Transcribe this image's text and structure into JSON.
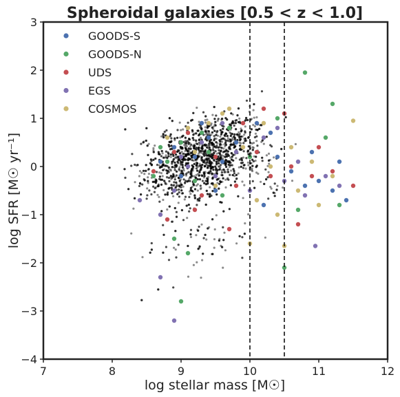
{
  "chart_data": {
    "type": "scatter",
    "title": "Spheroidal galaxies [0.5 < z < 1.0]",
    "xlabel": "log stellar mass [M☉]",
    "ylabel": "log SFR [M☉ yr⁻¹]",
    "xlim": [
      7,
      12
    ],
    "ylim": [
      -4,
      3
    ],
    "xticks": [
      "7",
      "8",
      "9",
      "10",
      "11",
      "12"
    ],
    "yticks": [
      "3",
      "2",
      "1",
      "0",
      "−1",
      "−2",
      "−3",
      "−4"
    ],
    "xtick_values": [
      7,
      8,
      9,
      10,
      11,
      12
    ],
    "ytick_values": [
      3,
      2,
      1,
      0,
      -1,
      -2,
      -3,
      -4
    ],
    "grid": false,
    "legend_position": "top-left",
    "vlines": [
      10.0,
      10.5
    ],
    "background_sample": {
      "name": "",
      "color": "#000000",
      "count": 2600,
      "x_range": [
        7.8,
        11.8
      ],
      "y_range": [
        -3.7,
        2.3
      ]
    },
    "series": [
      {
        "name": "GOODS-S",
        "color": "#4c72b0",
        "points": [
          [
            8.9,
            0.4
          ],
          [
            9.2,
            0.2
          ],
          [
            9.4,
            0.6
          ],
          [
            9.6,
            0.1
          ],
          [
            9.8,
            0.5
          ],
          [
            10.1,
            0.9
          ],
          [
            10.3,
            0.7
          ],
          [
            10.6,
            -0.1
          ],
          [
            10.8,
            -0.4
          ],
          [
            11.0,
            -0.3
          ],
          [
            11.2,
            -0.5
          ],
          [
            11.3,
            0.1
          ],
          [
            10.2,
            -0.8
          ],
          [
            9.0,
            -0.2
          ],
          [
            8.7,
            0.1
          ],
          [
            9.5,
            -0.5
          ],
          [
            10.9,
            0.3
          ],
          [
            11.4,
            -0.7
          ],
          [
            10.4,
            0.2
          ],
          [
            9.3,
            0.9
          ]
        ]
      },
      {
        "name": "GOODS-N",
        "color": "#55a868",
        "points": [
          [
            8.8,
            0.1
          ],
          [
            9.0,
            0.5
          ],
          [
            9.2,
            -0.3
          ],
          [
            9.1,
            -1.8
          ],
          [
            8.9,
            -1.5
          ],
          [
            9.4,
            0.3
          ],
          [
            9.7,
            0.8
          ],
          [
            10.0,
            0.2
          ],
          [
            10.4,
            1.0
          ],
          [
            10.8,
            1.95
          ],
          [
            11.2,
            1.3
          ],
          [
            10.5,
            -2.1
          ],
          [
            9.0,
            -2.8
          ],
          [
            8.6,
            -0.2
          ],
          [
            9.6,
            -0.6
          ],
          [
            10.7,
            -0.9
          ],
          [
            11.1,
            0.6
          ],
          [
            9.3,
            0.7
          ],
          [
            11.3,
            -0.8
          ],
          [
            8.7,
            0.4
          ]
        ]
      },
      {
        "name": "UDS",
        "color": "#c44e52",
        "points": [
          [
            8.6,
            -0.1
          ],
          [
            8.9,
            0.3
          ],
          [
            9.1,
            0.7
          ],
          [
            9.3,
            -0.6
          ],
          [
            9.5,
            0.2
          ],
          [
            9.8,
            -0.4
          ],
          [
            10.1,
            0.3
          ],
          [
            10.3,
            -0.2
          ],
          [
            10.6,
            0.0
          ],
          [
            10.9,
            -0.2
          ],
          [
            11.2,
            -0.1
          ],
          [
            11.5,
            -0.4
          ],
          [
            10.5,
            1.1
          ],
          [
            9.7,
            -1.3
          ],
          [
            10.7,
            -1.2
          ],
          [
            11.0,
            0.4
          ],
          [
            9.2,
            -0.9
          ],
          [
            10.2,
            1.2
          ],
          [
            9.9,
            0.9
          ],
          [
            8.8,
            -1.1
          ]
        ]
      },
      {
        "name": "EGS",
        "color": "#8172b2",
        "points": [
          [
            8.4,
            -0.7
          ],
          [
            8.7,
            -1.0
          ],
          [
            8.7,
            -2.3
          ],
          [
            8.9,
            -3.2
          ],
          [
            9.0,
            0.2
          ],
          [
            9.3,
            0.5
          ],
          [
            9.5,
            -0.2
          ],
          [
            9.8,
            0.3
          ],
          [
            10.0,
            -0.5
          ],
          [
            10.2,
            0.6
          ],
          [
            10.5,
            -0.3
          ],
          [
            10.8,
            -0.6
          ],
          [
            10.95,
            -1.65
          ],
          [
            11.1,
            -0.2
          ],
          [
            11.3,
            -0.4
          ],
          [
            9.6,
            0.9
          ],
          [
            10.4,
            0.8
          ],
          [
            8.9,
            -0.5
          ],
          [
            10.7,
            0.1
          ],
          [
            9.1,
            0.0
          ]
        ]
      },
      {
        "name": "COSMOS",
        "color": "#ccb974",
        "points": [
          [
            8.8,
            0.6
          ],
          [
            9.1,
            0.8
          ],
          [
            9.4,
            0.9
          ],
          [
            9.6,
            1.1
          ],
          [
            9.7,
            1.2
          ],
          [
            10.0,
            -1.6
          ],
          [
            10.3,
            0.0
          ],
          [
            10.6,
            0.4
          ],
          [
            10.5,
            -1.65
          ],
          [
            10.9,
            0.1
          ],
          [
            11.2,
            -0.2
          ],
          [
            11.5,
            0.95
          ],
          [
            9.5,
            -0.4
          ],
          [
            10.1,
            -0.7
          ],
          [
            10.7,
            -0.5
          ],
          [
            9.9,
            0.4
          ],
          [
            10.4,
            -1.0
          ],
          [
            9.2,
            0.3
          ],
          [
            11.0,
            -0.8
          ],
          [
            10.2,
            0.9
          ]
        ]
      }
    ]
  }
}
